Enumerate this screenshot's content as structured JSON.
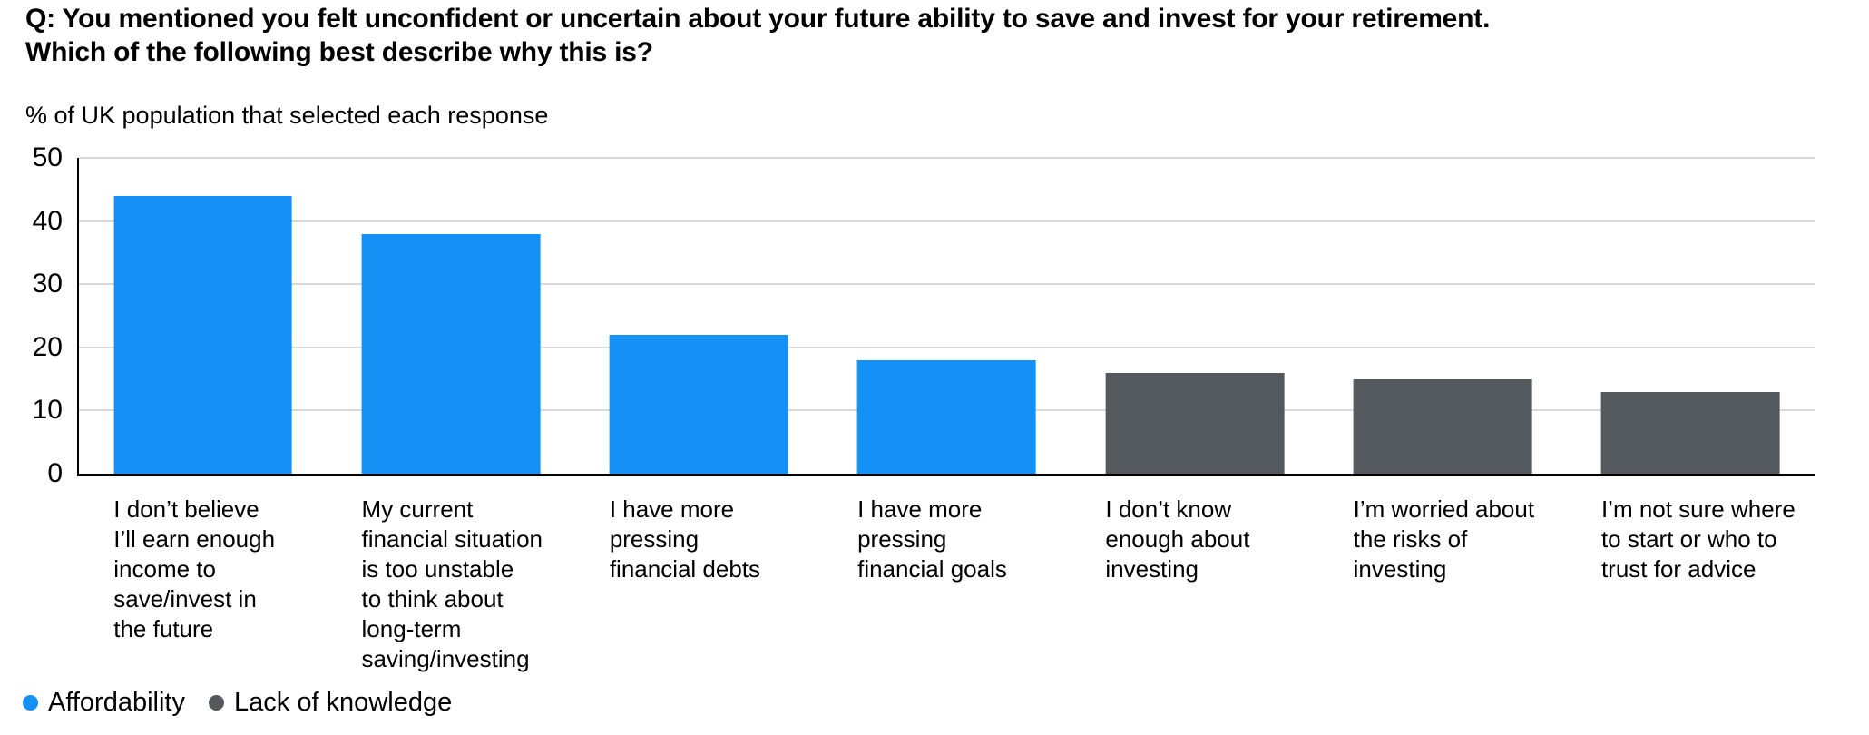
{
  "header": {
    "title_lines": [
      "Q: You mentioned you felt unconfident or uncertain about your future ability to save and invest for your retirement.",
      "Which of the following best describe why this is?"
    ]
  },
  "chart_data": {
    "type": "bar",
    "title": "Q: You mentioned you felt unconfident or uncertain about your future ability to save and invest for your retirement. Which of the following best describe why this is?",
    "subtitle": "% of UK population that selected each response",
    "categories": [
      "I don’t believe\nI’ll earn enough\nincome to\nsave/invest in\nthe future",
      "My current\nfinancial situation\nis too unstable\nto think about\nlong-term\nsaving/investing",
      "I have more\npressing\nfinancial debts",
      "I have more\npressing\nfinancial goals",
      "I don’t know\nenough about\ninvesting",
      "I’m worried about\nthe risks of\ninvesting",
      "I’m not sure where\nto start or who to\ntrust for advice"
    ],
    "values": [
      44,
      38,
      22,
      18,
      16,
      15,
      13
    ],
    "unit": "%",
    "point_groups": [
      0,
      0,
      0,
      0,
      1,
      1,
      1
    ],
    "groups": [
      {
        "name": "Affordability",
        "color": "#1590F5"
      },
      {
        "name": "Lack of knowledge",
        "color": "#54595D"
      }
    ],
    "ylim": [
      0,
      50
    ],
    "yticks": [
      0,
      10,
      20,
      30,
      40,
      50
    ],
    "grid": "horizontal-light",
    "gridline_color": "#D9D9D9",
    "axis_color": "#000000",
    "legend_position": "bottom-left"
  }
}
